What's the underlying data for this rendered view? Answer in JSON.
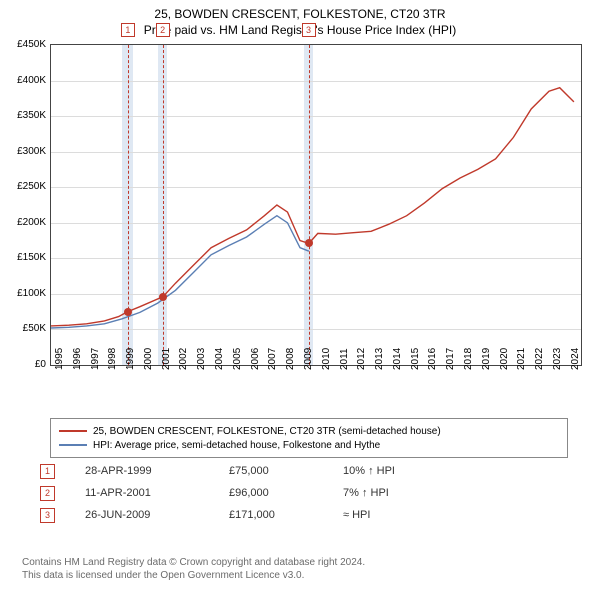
{
  "title_line1": "25, BOWDEN CRESCENT, FOLKESTONE, CT20 3TR",
  "title_line2": "Price paid vs. HM Land Registry's House Price Index (HPI)",
  "chart": {
    "type": "line",
    "x_min_year": 1995,
    "x_max_year": 2024.8,
    "y_min": 0,
    "y_max": 450000,
    "y_tick_step": 50000,
    "y_tick_labels": [
      "£0",
      "£50K",
      "£100K",
      "£150K",
      "£200K",
      "£250K",
      "£300K",
      "£350K",
      "£400K",
      "£450K"
    ],
    "x_ticks": [
      1995,
      1996,
      1997,
      1998,
      1999,
      2000,
      2001,
      2002,
      2003,
      2004,
      2005,
      2006,
      2007,
      2008,
      2009,
      2010,
      2011,
      2012,
      2013,
      2014,
      2015,
      2016,
      2017,
      2018,
      2019,
      2020,
      2021,
      2022,
      2023,
      2024
    ],
    "grid_color": "#dcdcdc",
    "background": "#ffffff",
    "colors": {
      "property": "#c0392b",
      "hpi": "#5b7fb4",
      "band": "#dfe8f3",
      "dash": "#c0392b"
    },
    "line_width": 1.4,
    "series_property": [
      [
        1995,
        55000
      ],
      [
        1996,
        56000
      ],
      [
        1997,
        58000
      ],
      [
        1998,
        62000
      ],
      [
        1998.8,
        68000
      ],
      [
        1999.3,
        75000
      ],
      [
        2000,
        82000
      ],
      [
        2001.3,
        96000
      ],
      [
        2002,
        115000
      ],
      [
        2003,
        140000
      ],
      [
        2004,
        165000
      ],
      [
        2005,
        178000
      ],
      [
        2006,
        190000
      ],
      [
        2007,
        210000
      ],
      [
        2007.7,
        225000
      ],
      [
        2008.3,
        215000
      ],
      [
        2009,
        175000
      ],
      [
        2009.5,
        171000
      ],
      [
        2010,
        185000
      ],
      [
        2011,
        184000
      ],
      [
        2012,
        186000
      ],
      [
        2013,
        188000
      ],
      [
        2014,
        198000
      ],
      [
        2015,
        210000
      ],
      [
        2016,
        228000
      ],
      [
        2017,
        248000
      ],
      [
        2018,
        263000
      ],
      [
        2019,
        275000
      ],
      [
        2020,
        290000
      ],
      [
        2021,
        320000
      ],
      [
        2022,
        360000
      ],
      [
        2023,
        385000
      ],
      [
        2023.6,
        390000
      ],
      [
        2024.4,
        370000
      ]
    ],
    "series_hpi": [
      [
        1995,
        52000
      ],
      [
        1996,
        53000
      ],
      [
        1997,
        55000
      ],
      [
        1998,
        58000
      ],
      [
        1999,
        65000
      ],
      [
        2000,
        74000
      ],
      [
        2001,
        87000
      ],
      [
        2002,
        105000
      ],
      [
        2003,
        130000
      ],
      [
        2004,
        155000
      ],
      [
        2005,
        168000
      ],
      [
        2006,
        180000
      ],
      [
        2007,
        198000
      ],
      [
        2007.7,
        210000
      ],
      [
        2008.3,
        200000
      ],
      [
        2009,
        165000
      ],
      [
        2009.5,
        160000
      ]
    ],
    "bands": [
      {
        "start": 1999.0,
        "end": 1999.6
      },
      {
        "start": 2001.0,
        "end": 2001.55
      },
      {
        "start": 2009.2,
        "end": 2009.75
      }
    ],
    "markers": [
      {
        "n": "1",
        "x": 1999.32,
        "sale_y": 75000
      },
      {
        "n": "2",
        "x": 2001.28,
        "sale_y": 96000
      },
      {
        "n": "3",
        "x": 2009.48,
        "sale_y": 171000
      }
    ]
  },
  "legend": {
    "property": "25, BOWDEN CRESCENT, FOLKESTONE, CT20 3TR (semi-detached house)",
    "hpi": "HPI: Average price, semi-detached house, Folkestone and Hythe"
  },
  "sales": [
    {
      "n": "1",
      "date": "28-APR-1999",
      "price": "£75,000",
      "delta": "10% ↑ HPI"
    },
    {
      "n": "2",
      "date": "11-APR-2001",
      "price": "£96,000",
      "delta": "7% ↑ HPI"
    },
    {
      "n": "3",
      "date": "26-JUN-2009",
      "price": "£171,000",
      "delta": "≈ HPI"
    }
  ],
  "footer_line1": "Contains HM Land Registry data © Crown copyright and database right 2024.",
  "footer_line2": "This data is licensed under the Open Government Licence v3.0."
}
